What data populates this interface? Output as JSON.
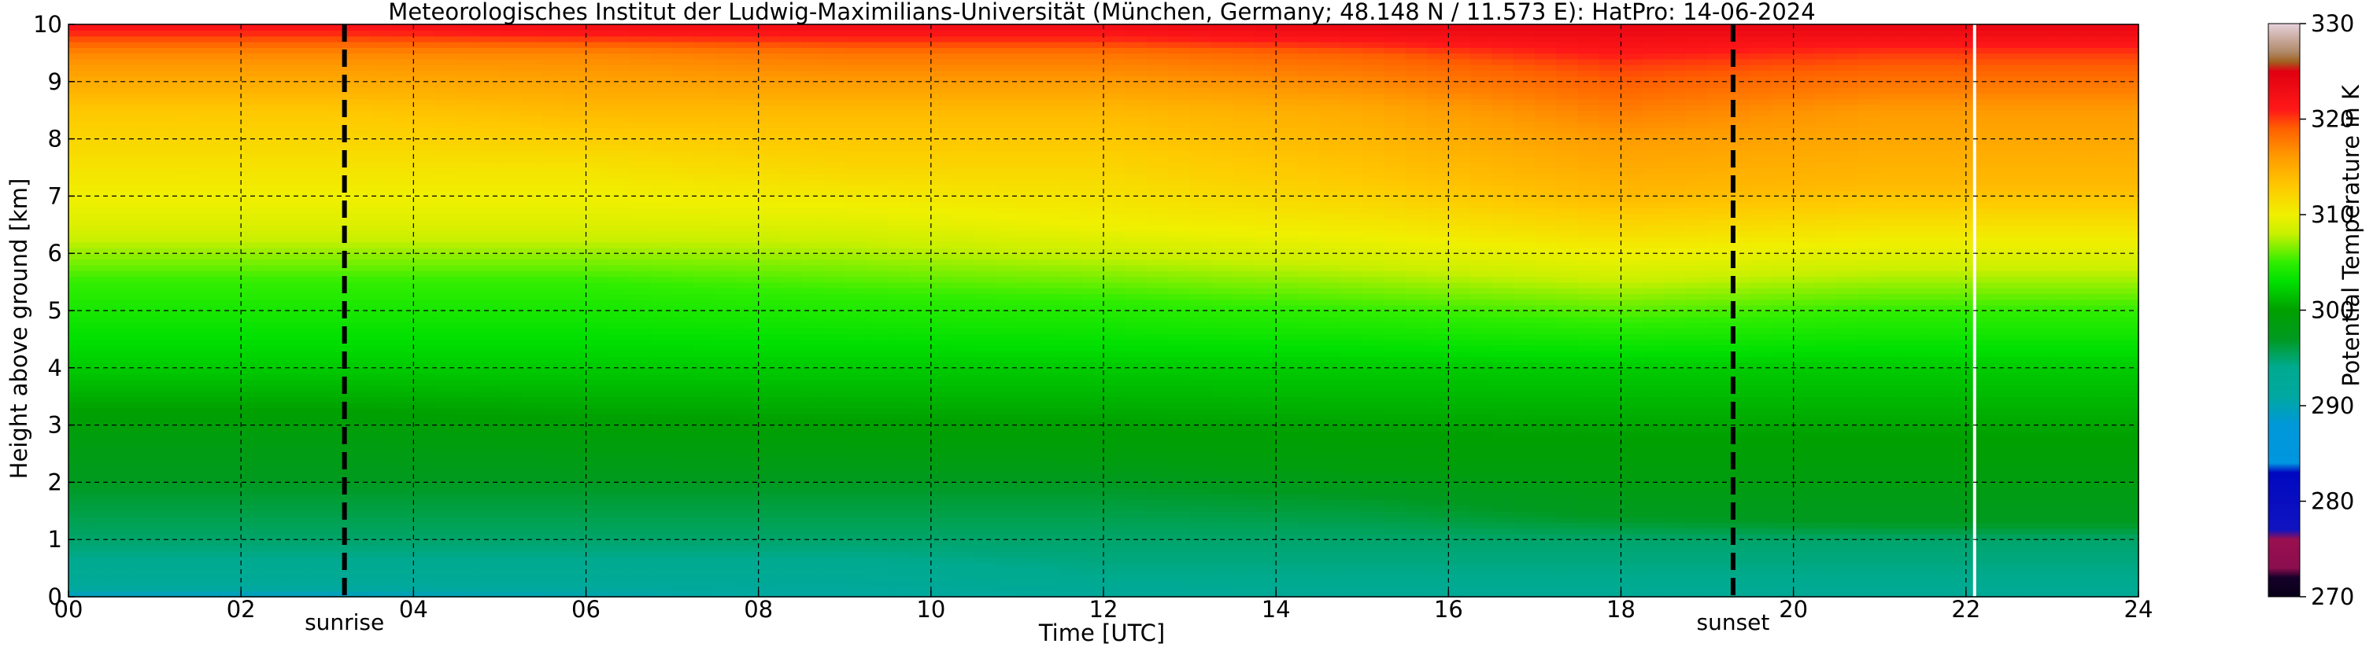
{
  "chart_data": {
    "type": "heatmap",
    "title": "Meteorologisches Institut der Ludwig-Maximilians-Universität (München, Germany; 48.148 N / 11.573 E):    HatPro: 14-06-2024",
    "xlabel": "Time [UTC]",
    "ylabel": "Height above ground [km]",
    "xlim": [
      0,
      24
    ],
    "ylim": [
      0,
      10
    ],
    "x_ticks": [
      "00",
      "02",
      "04",
      "06",
      "08",
      "10",
      "12",
      "14",
      "16",
      "18",
      "20",
      "22",
      "24"
    ],
    "y_ticks": [
      "0",
      "1",
      "2",
      "3",
      "4",
      "5",
      "6",
      "7",
      "8",
      "9",
      "10"
    ],
    "grid": true,
    "colorbar": {
      "label": "Potential Temperature in K",
      "range": [
        270,
        330
      ],
      "ticks": [
        "270",
        "280",
        "290",
        "300",
        "310",
        "320",
        "330"
      ]
    },
    "annotations": [
      {
        "text": "sunrise",
        "x": 3.2
      },
      {
        "text": "sunset",
        "x": 19.3
      }
    ],
    "data_gap_at": 22.1,
    "profiles": [
      {
        "time": 0,
        "heights": [
          0.0,
          0.3,
          1.0,
          2.0,
          2.9,
          4.0,
          5.5,
          6.5,
          7.5,
          8.5,
          9.5,
          10.0
        ],
        "theta": [
          289,
          293,
          295,
          297,
          299,
          302,
          305,
          309,
          311,
          313,
          317,
          322
        ]
      },
      {
        "time": 3,
        "heights": [
          0.0,
          0.3,
          1.0,
          2.0,
          2.9,
          4.0,
          5.5,
          6.5,
          7.5,
          8.5,
          9.5,
          10.0
        ],
        "theta": [
          289,
          293,
          295,
          297,
          299,
          302,
          305,
          309,
          311,
          313,
          317,
          322
        ]
      },
      {
        "time": 6,
        "heights": [
          0.0,
          0.3,
          1.0,
          2.0,
          2.7,
          4.0,
          5.5,
          6.5,
          7.5,
          8.5,
          9.5,
          10.0
        ],
        "theta": [
          290,
          293,
          295,
          297,
          299,
          302,
          305,
          309,
          311,
          314,
          317,
          323
        ]
      },
      {
        "time": 9,
        "heights": [
          0.0,
          0.3,
          1.0,
          2.0,
          2.6,
          4.0,
          5.3,
          6.5,
          7.5,
          8.5,
          9.5,
          10.0
        ],
        "theta": [
          291,
          293,
          295,
          297,
          299,
          302,
          305,
          309,
          312,
          314,
          318,
          323
        ]
      },
      {
        "time": 12,
        "heights": [
          0.0,
          0.3,
          1.0,
          2.0,
          2.5,
          4.0,
          5.2,
          6.5,
          7.5,
          8.5,
          9.5,
          10.0
        ],
        "theta": [
          292,
          294,
          295,
          297,
          299,
          302,
          305,
          310,
          312,
          314,
          318,
          323
        ]
      },
      {
        "time": 15,
        "heights": [
          0.0,
          0.3,
          1.0,
          1.8,
          2.3,
          4.0,
          5.0,
          6.3,
          7.3,
          8.5,
          9.5,
          10.0
        ],
        "theta": [
          293,
          294,
          295,
          297,
          299,
          302,
          305,
          310,
          313,
          315,
          319,
          324
        ]
      },
      {
        "time": 18,
        "heights": [
          0.0,
          0.3,
          1.0,
          1.4,
          2.2,
          4.0,
          4.8,
          6.0,
          7.0,
          8.0,
          9.3,
          10.0
        ],
        "theta": [
          293,
          294,
          295,
          297,
          299,
          302,
          305,
          310,
          314,
          316,
          320,
          324
        ]
      },
      {
        "time": 21,
        "heights": [
          0.0,
          0.3,
          1.0,
          1.3,
          2.2,
          4.0,
          5.0,
          6.2,
          7.2,
          8.5,
          9.5,
          10.0
        ],
        "theta": [
          293,
          294,
          295,
          297,
          299,
          302,
          305,
          310,
          314,
          316,
          320,
          324
        ]
      },
      {
        "time": 24,
        "heights": [
          0.0,
          0.3,
          1.0,
          1.3,
          2.2,
          4.0,
          5.0,
          6.2,
          7.2,
          8.5,
          9.5,
          10.0
        ],
        "theta": [
          293,
          294,
          295,
          297,
          299,
          302,
          305,
          310,
          314,
          316,
          320,
          324
        ]
      }
    ]
  }
}
